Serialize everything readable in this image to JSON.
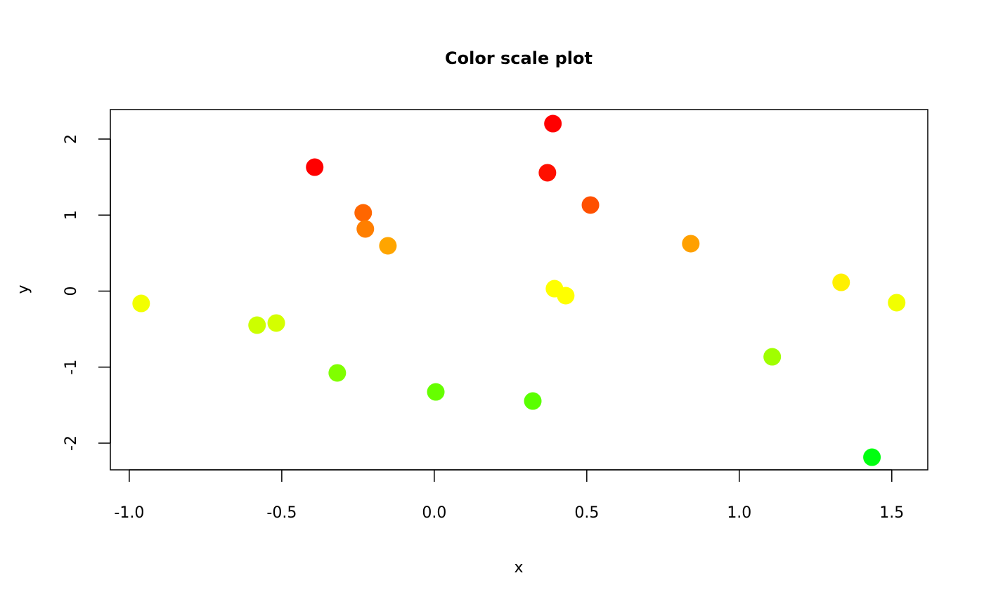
{
  "chart_data": {
    "type": "scatter",
    "title": "Color scale plot",
    "xlabel": "x",
    "ylabel": "y",
    "xlim": [
      -1.062,
      1.618
    ],
    "ylim": [
      -2.351,
      2.388
    ],
    "xticks": [
      -1.0,
      -0.5,
      0.0,
      0.5,
      1.0,
      1.5
    ],
    "xtick_labels": [
      "-1.0",
      "-0.5",
      "0.0",
      "0.5",
      "1.0",
      "1.5"
    ],
    "yticks": [
      -2,
      -1,
      0,
      1,
      2
    ],
    "ytick_labels": [
      "-2",
      "-1",
      "0",
      "1",
      "2"
    ],
    "grid": false,
    "legend": "none",
    "points": [
      {
        "x": -0.961,
        "y": -0.162,
        "color": "#F2FF00"
      },
      {
        "x": -0.581,
        "y": -0.448,
        "color": "#CCFF00"
      },
      {
        "x": -0.518,
        "y": -0.42,
        "color": "#D4FF00"
      },
      {
        "x": -0.392,
        "y": 1.63,
        "color": "#FF0000"
      },
      {
        "x": -0.233,
        "y": 1.03,
        "color": "#FF6600"
      },
      {
        "x": -0.226,
        "y": 0.818,
        "color": "#FF7F00"
      },
      {
        "x": -0.152,
        "y": 0.596,
        "color": "#FFA500"
      },
      {
        "x": -0.318,
        "y": -1.076,
        "color": "#80FF00"
      },
      {
        "x": 0.005,
        "y": -1.326,
        "color": "#66FF00"
      },
      {
        "x": 0.323,
        "y": -1.446,
        "color": "#5AFF00"
      },
      {
        "x": 0.389,
        "y": 2.203,
        "color": "#FF0000"
      },
      {
        "x": 0.371,
        "y": 1.557,
        "color": "#FF1000"
      },
      {
        "x": 0.512,
        "y": 1.132,
        "color": "#FF5000"
      },
      {
        "x": 0.394,
        "y": 0.032,
        "color": "#FFFF00"
      },
      {
        "x": 0.431,
        "y": -0.06,
        "color": "#FFFF00"
      },
      {
        "x": 0.841,
        "y": 0.624,
        "color": "#FFA000"
      },
      {
        "x": 1.334,
        "y": 0.115,
        "color": "#FFF000"
      },
      {
        "x": 1.516,
        "y": -0.152,
        "color": "#F2FF00"
      },
      {
        "x": 1.108,
        "y": -0.864,
        "color": "#A0FF00"
      },
      {
        "x": 1.435,
        "y": -2.185,
        "color": "#00FF10"
      }
    ]
  }
}
